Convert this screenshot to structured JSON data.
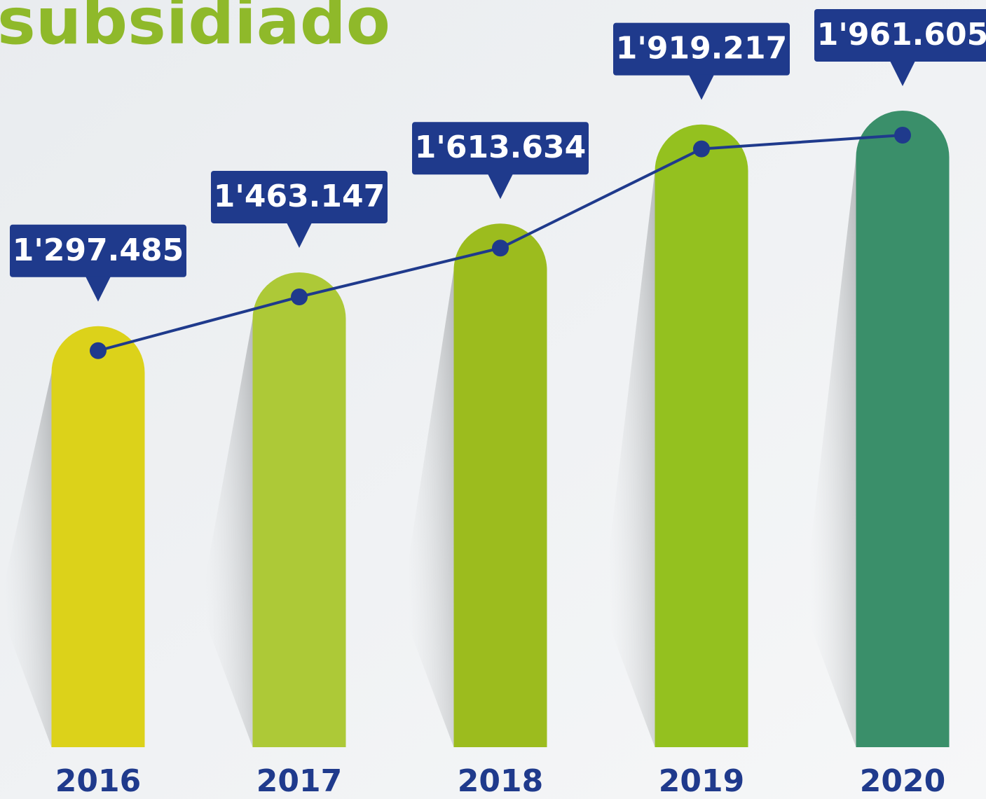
{
  "chart_data": {
    "type": "bar",
    "title": "subsidiado",
    "categories": [
      "2016",
      "2017",
      "2018",
      "2019",
      "2020"
    ],
    "values": [
      1297485,
      1463147,
      1613634,
      1919217,
      1961605
    ],
    "value_labels": [
      "1'297.485",
      "1'463.147",
      "1'613.634",
      "1'919.217",
      "1'961.605"
    ],
    "colors": [
      "#dcd21a",
      "#adc937",
      "#9cbc1e",
      "#94c11f",
      "#3a8f6a"
    ],
    "line_color": "#1f3a8c"
  }
}
